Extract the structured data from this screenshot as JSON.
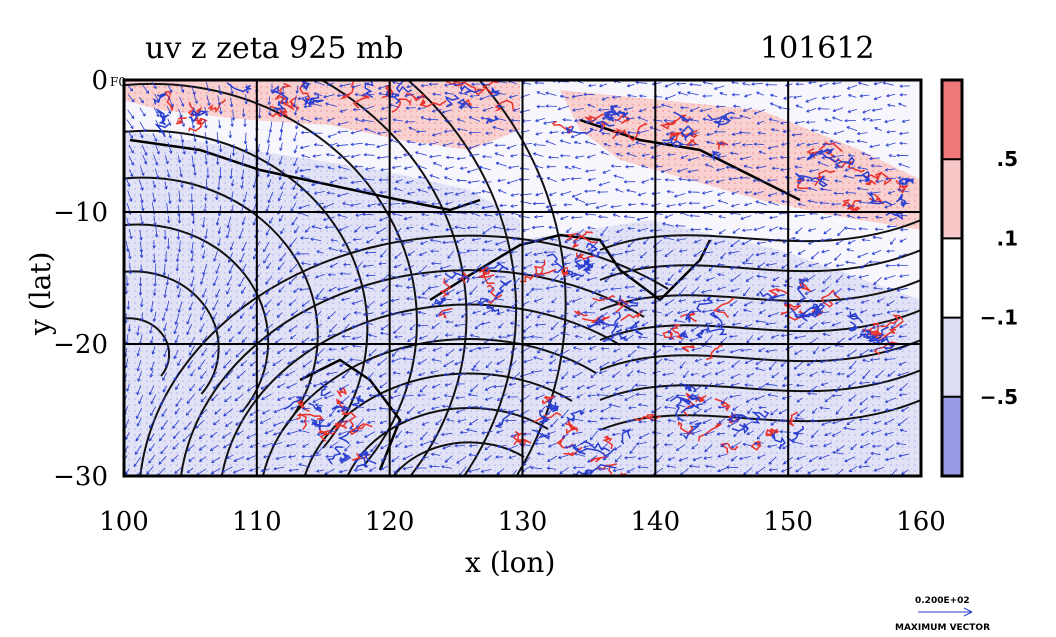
{
  "chart_data": {
    "type": "heatmap",
    "title": "uv z zeta 925 mb",
    "title_right": "101612",
    "corner_label": "F0",
    "xlabel": "x (lon)",
    "ylabel": "y (lat)",
    "xlim": [
      100,
      160
    ],
    "ylim": [
      -30,
      0
    ],
    "x_ticks": [
      100,
      110,
      120,
      130,
      140,
      150,
      160
    ],
    "y_ticks": [
      0,
      -10,
      -20,
      -30
    ],
    "x_tick_labels": [
      "100",
      "110",
      "120",
      "130",
      "140",
      "150",
      "160"
    ],
    "y_tick_labels": [
      "0",
      "−10",
      "−20",
      "−30"
    ],
    "grid": true,
    "colorbar": {
      "labels": [
        ".5",
        ".1",
        "−.1",
        "−.5"
      ],
      "bounds": [
        0.5,
        0.1,
        -0.1,
        -0.5
      ],
      "colors": [
        "#ee7777",
        "#f8c8c8",
        "#ffffff",
        "#dcdcf4",
        "#9a9ae8"
      ]
    },
    "vector_legend": {
      "magnitude": "0.200E+02",
      "label": "MAXIMUM VECTOR"
    },
    "colors": {
      "positive_contour": "#e8322c",
      "negative_contour": "#2a3fd0",
      "height_contour": "#000000",
      "wind_vector": "#2a3fd0"
    }
  }
}
